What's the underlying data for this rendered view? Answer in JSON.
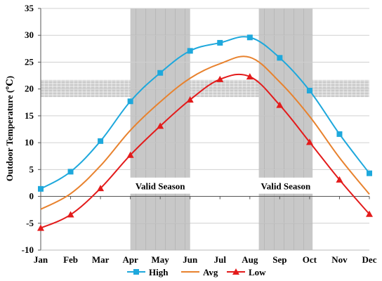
{
  "chart_data": {
    "type": "line",
    "title": "",
    "xlabel": "",
    "ylabel": "Outdoor Temperature (℃)",
    "categories": [
      "Jan",
      "Feb",
      "Mar",
      "Apr",
      "May",
      "Jun",
      "Jul",
      "Aug",
      "Sep",
      "Oct",
      "Nov",
      "Dec"
    ],
    "ylim": [
      -10,
      35
    ],
    "yticks": [
      -10,
      -5,
      0,
      5,
      10,
      15,
      20,
      25,
      30,
      35
    ],
    "grid": "horizontal",
    "legend": "bottom",
    "series": [
      {
        "name": "High",
        "color": "#1ea8dc",
        "marker": "square",
        "points": [
          [
            0,
            1.4
          ],
          [
            1,
            4.6
          ],
          [
            2,
            10.3
          ],
          [
            3,
            17.7
          ],
          [
            4,
            23.0
          ],
          [
            5,
            27.1
          ],
          [
            6,
            28.6
          ],
          [
            7,
            29.6
          ],
          [
            8,
            25.8
          ],
          [
            9,
            19.7
          ],
          [
            10,
            11.6
          ],
          [
            11,
            4.3
          ]
        ]
      },
      {
        "name": "Avg",
        "color": "#e8822e",
        "marker": "none",
        "points": [
          [
            0,
            -2.4
          ],
          [
            1,
            0.5
          ],
          [
            2,
            5.7
          ],
          [
            3,
            12.3
          ],
          [
            4,
            17.6
          ],
          [
            5,
            22.0
          ],
          [
            6,
            24.7
          ],
          [
            7,
            25.9
          ],
          [
            8,
            21.3
          ],
          [
            9,
            14.9
          ],
          [
            10,
            7.2
          ],
          [
            11,
            0.4
          ]
        ]
      },
      {
        "name": "Low",
        "color": "#e31b1b",
        "marker": "triangle",
        "points": [
          [
            0,
            -5.9
          ],
          [
            1,
            -3.4
          ],
          [
            2,
            1.5
          ],
          [
            3,
            7.7
          ],
          [
            4,
            13.1
          ],
          [
            5,
            18.0
          ],
          [
            6,
            21.8
          ],
          [
            7,
            22.3
          ],
          [
            8,
            17.0
          ],
          [
            9,
            10.1
          ],
          [
            10,
            3.1
          ],
          [
            11,
            -3.3
          ]
        ]
      }
    ],
    "shaded_regions": [
      {
        "label": "Valid Season",
        "x_start": 3,
        "x_end": 5,
        "y_start": 3.5,
        "y_end": 35
      },
      {
        "label": "Valid Season",
        "x_start": 7.3,
        "x_end": 9.1,
        "y_start": 3.5,
        "y_end": 35
      },
      {
        "label": "",
        "x_start": 3,
        "x_end": 5,
        "y_start": -10,
        "y_end": 0.5
      },
      {
        "label": "",
        "x_start": 7.3,
        "x_end": 9.1,
        "y_start": -10,
        "y_end": 0.5
      }
    ],
    "comfort_band": {
      "y_start": 18.5,
      "y_end": 21.7
    },
    "season_label_y": 0.5
  }
}
